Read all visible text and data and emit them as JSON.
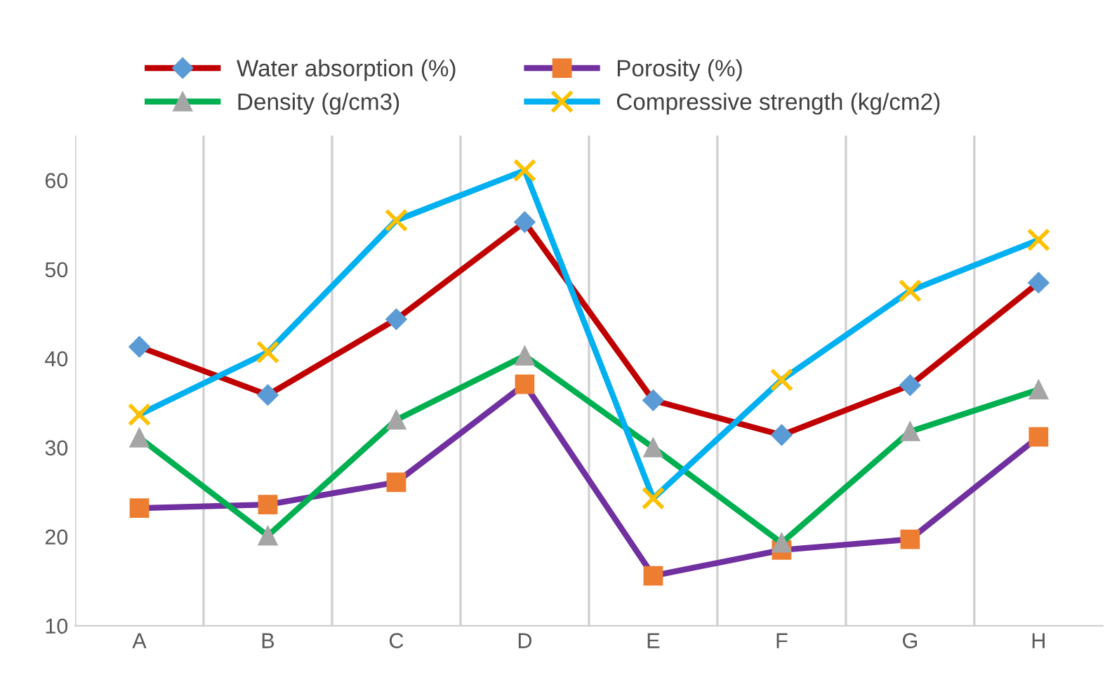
{
  "chart_data": {
    "type": "line",
    "categories": [
      "A",
      "B",
      "C",
      "D",
      "E",
      "F",
      "G",
      "H"
    ],
    "series": [
      {
        "name": "Water absorption (%)",
        "color": "#c00000",
        "marker": "diamond",
        "values": [
          41.3,
          35.9,
          44.4,
          55.3,
          35.3,
          31.4,
          37.0,
          48.5
        ]
      },
      {
        "name": "Porosity (%)",
        "color": "#7030a0",
        "marker": "square",
        "values": [
          23.2,
          23.6,
          26.1,
          37.1,
          15.6,
          18.5,
          19.7,
          31.2
        ]
      },
      {
        "name": "Density (g/cm3)",
        "color": "#00b050",
        "marker": "triangle",
        "values": [
          31.1,
          20.1,
          33.1,
          40.3,
          30.0,
          19.3,
          31.8,
          36.5
        ]
      },
      {
        "name": "Compressive strength (kg/cm2)",
        "color": "#00b0f0",
        "marker": "cross",
        "values": [
          33.7,
          40.7,
          55.5,
          61.1,
          24.3,
          37.6,
          47.6,
          53.3
        ]
      }
    ],
    "ylim": [
      10,
      65
    ],
    "yticks": [
      10,
      20,
      30,
      40,
      50,
      60
    ],
    "grid": "x",
    "legend": "top",
    "line_style": "solid"
  }
}
